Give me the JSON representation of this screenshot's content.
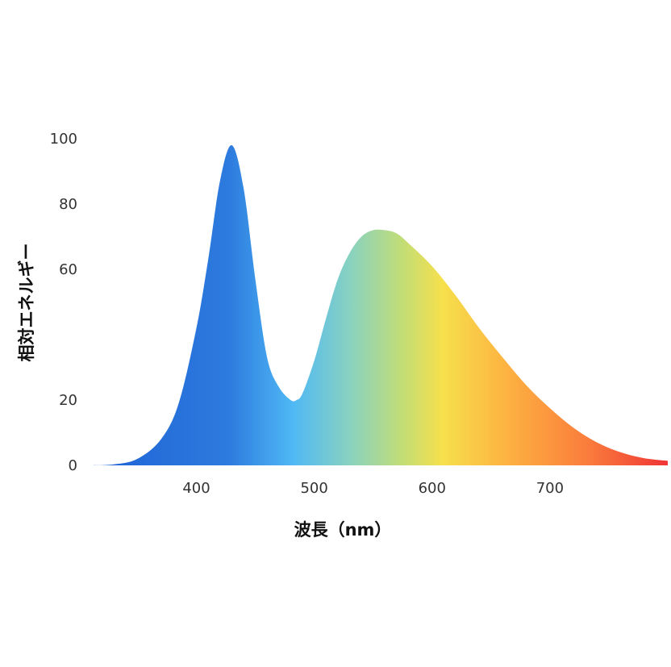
{
  "chart_data": {
    "type": "area",
    "title": "",
    "xlabel": "波長（nm）",
    "ylabel": "相対エネルギー",
    "xlim": [
      310,
      800
    ],
    "ylim": [
      0,
      100
    ],
    "x_ticks": [
      "400",
      "500",
      "600",
      "700"
    ],
    "y_ticks": [
      "0",
      "20",
      "60",
      "80",
      "100"
    ],
    "grid": false,
    "legend": "none",
    "series": [
      {
        "x": [
          310,
          330,
          350,
          370,
          385,
          400,
          410,
          420,
          430,
          440,
          450,
          460,
          470,
          480,
          485,
          490,
          500,
          510,
          520,
          530,
          540,
          550,
          560,
          570,
          580,
          600,
          620,
          640,
          660,
          680,
          700,
          720,
          740,
          760,
          780,
          800
        ],
        "values": [
          0,
          0.3,
          2,
          8,
          19,
          42,
          63,
          87,
          98,
          85,
          57,
          33,
          24,
          20,
          20,
          22,
          32,
          45,
          57,
          65,
          70,
          72,
          72,
          71,
          68,
          61,
          52,
          42,
          33,
          24.5,
          17.5,
          11.5,
          7,
          4,
          2.2,
          1.4
        ],
        "gradient_stops": [
          {
            "offset": 0.0,
            "color": "#1f63d6"
          },
          {
            "offset": 0.24,
            "color": "#2d7bde"
          },
          {
            "offset": 0.35,
            "color": "#4fb8f5"
          },
          {
            "offset": 0.45,
            "color": "#89d2c0"
          },
          {
            "offset": 0.54,
            "color": "#c2dd76"
          },
          {
            "offset": 0.61,
            "color": "#f6e04c"
          },
          {
            "offset": 0.72,
            "color": "#fdb341"
          },
          {
            "offset": 0.86,
            "color": "#fa7d3c"
          },
          {
            "offset": 1.0,
            "color": "#ef3535"
          }
        ]
      }
    ]
  }
}
